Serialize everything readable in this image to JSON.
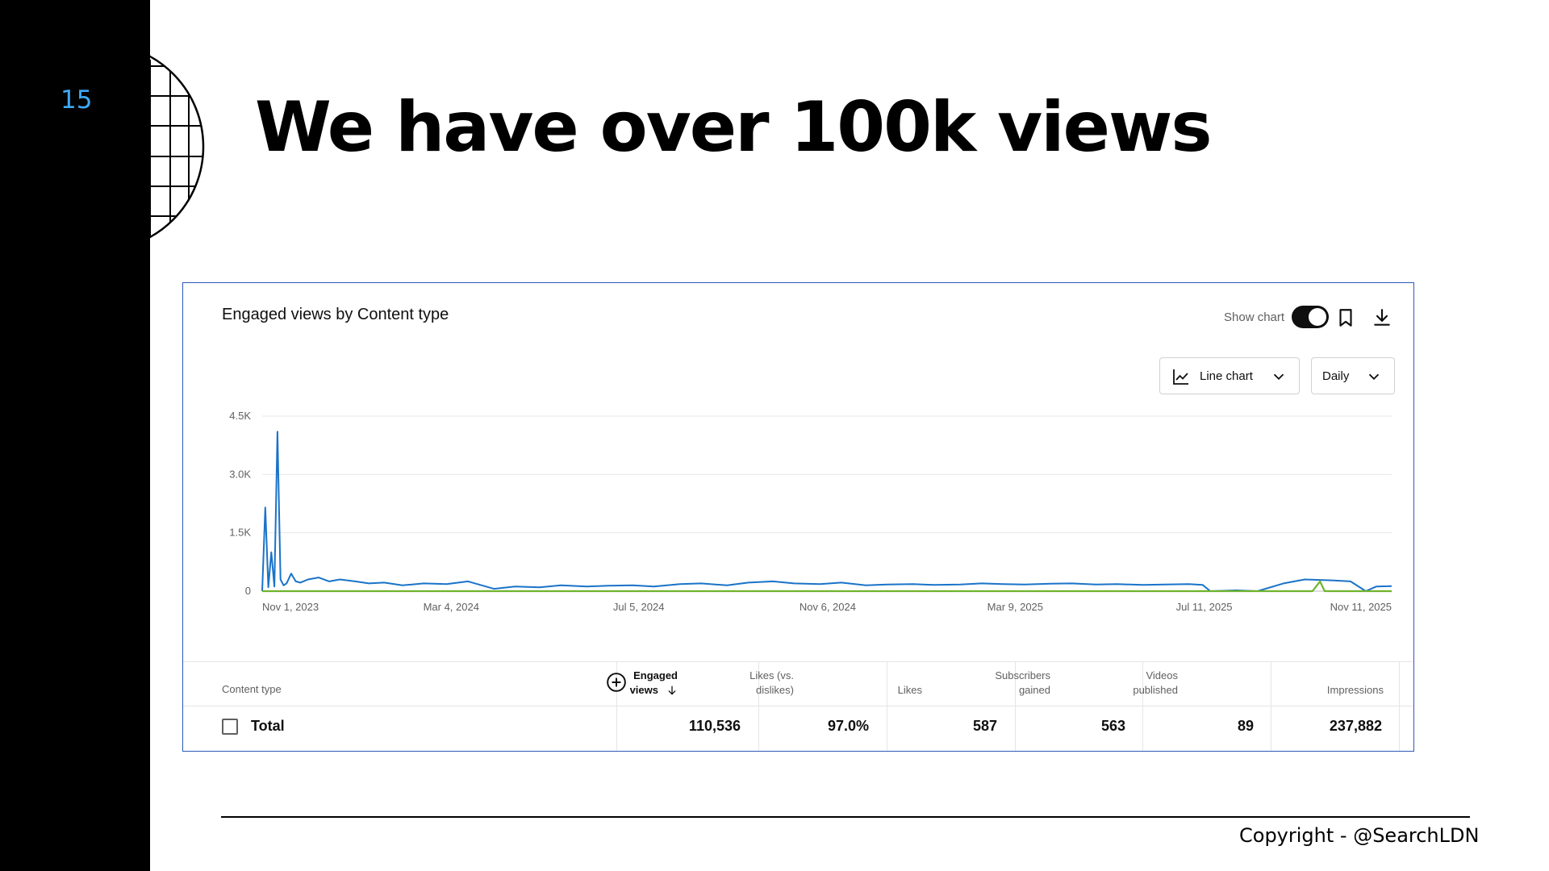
{
  "slide": {
    "number": "15",
    "title": "We have over 100k views",
    "footer": "Copyright - @SearchLDN"
  },
  "panel": {
    "title": "Engaged views by Content type",
    "show_chart_label": "Show chart",
    "show_chart_on": true,
    "chart_type_label": "Line chart",
    "interval_label": "Daily",
    "icons": [
      "line-chart-icon",
      "chevron-down-icon",
      "bookmark-icon",
      "download-icon",
      "add-circle-icon",
      "arrow-down-icon"
    ]
  },
  "chart_data": {
    "type": "line",
    "title": "Engaged views by Content type",
    "y_ticks": [
      "4.5K",
      "3.0K",
      "1.5K",
      "0"
    ],
    "x_ticks": [
      "Nov 1, 2023",
      "Mar 4, 2024",
      "Jul 5, 2024",
      "Nov 6, 2024",
      "Mar 9, 2025",
      "Jul 11, 2025",
      "Nov 11, 2025"
    ],
    "ylim": [
      0,
      4500
    ],
    "grid": true,
    "series": [
      {
        "color": "#1a73c8",
        "x": [
          "2023-11-01",
          "2023-11-03",
          "2023-11-05",
          "2023-11-07",
          "2023-11-09",
          "2023-11-11",
          "2023-11-13",
          "2023-11-15",
          "2023-11-17",
          "2023-11-20",
          "2023-11-23",
          "2023-11-26",
          "2023-12-01",
          "2023-12-08",
          "2023-12-15",
          "2023-12-22",
          "2024-01-01",
          "2024-01-10",
          "2024-01-20",
          "2024-02-01",
          "2024-02-15",
          "2024-03-01",
          "2024-03-15",
          "2024-04-01",
          "2024-04-15",
          "2024-05-01",
          "2024-05-15",
          "2024-06-01",
          "2024-06-15",
          "2024-07-01",
          "2024-07-15",
          "2024-08-01",
          "2024-08-15",
          "2024-09-01",
          "2024-09-15",
          "2024-10-01",
          "2024-10-15",
          "2024-11-01",
          "2024-11-15",
          "2024-12-01",
          "2024-12-15",
          "2025-01-01",
          "2025-01-15",
          "2025-02-01",
          "2025-02-15",
          "2025-03-01",
          "2025-03-15",
          "2025-04-01",
          "2025-04-15",
          "2025-05-01",
          "2025-05-15",
          "2025-06-01",
          "2025-06-15",
          "2025-07-01",
          "2025-07-10",
          "2025-07-15",
          "2025-08-01",
          "2025-08-15",
          "2025-09-01",
          "2025-09-15",
          "2025-10-01",
          "2025-10-15",
          "2025-10-25",
          "2025-11-01",
          "2025-11-11"
        ],
        "values": [
          0,
          2150,
          100,
          1000,
          120,
          4100,
          300,
          150,
          200,
          450,
          250,
          220,
          300,
          350,
          250,
          300,
          250,
          200,
          220,
          150,
          200,
          180,
          250,
          60,
          120,
          100,
          150,
          120,
          140,
          150,
          120,
          180,
          200,
          150,
          220,
          250,
          200,
          180,
          220,
          150,
          170,
          180,
          160,
          170,
          200,
          180,
          170,
          190,
          200,
          170,
          180,
          160,
          170,
          180,
          160,
          0,
          20,
          0,
          200,
          300,
          280,
          250,
          0,
          120,
          130
        ]
      },
      {
        "color": "#6fb42c",
        "x": [
          "2023-11-01",
          "2025-09-20",
          "2025-09-25",
          "2025-09-28",
          "2025-11-11"
        ],
        "values": [
          0,
          0,
          250,
          0,
          0
        ]
      }
    ]
  },
  "table": {
    "headers": {
      "content_type": "Content type",
      "engaged_views": [
        "Engaged",
        "views"
      ],
      "likes_vs_dislikes": [
        "Likes (vs.",
        "dislikes)"
      ],
      "likes": "Likes",
      "subscribers_gained": [
        "Subscribers",
        "gained"
      ],
      "videos_published": [
        "Videos",
        "published"
      ],
      "impressions": "Impressions"
    },
    "total_row": {
      "label": "Total",
      "engaged_views": "110,536",
      "likes_vs_dislikes": "97.0%",
      "likes": "587",
      "subscribers_gained": "563",
      "videos_published": "89",
      "impressions": "237,882"
    }
  }
}
